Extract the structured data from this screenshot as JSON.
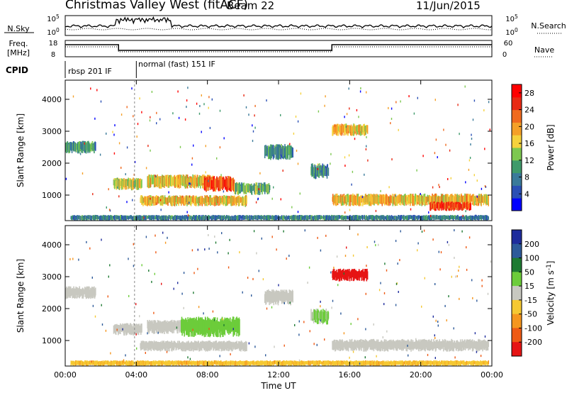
{
  "header": {
    "title": "Christmas Valley West (fitACF)",
    "beam": "Beam 22",
    "date": "11/Jun/2015"
  },
  "time_axis": {
    "label": "Time UT",
    "ticks": [
      "00:00",
      "04:00",
      "08:00",
      "12:00",
      "16:00",
      "20:00",
      "00:00"
    ]
  },
  "noise_panel": {
    "left_label": "N.Sky",
    "left_ticks": [
      "10^5",
      "10^0"
    ],
    "right_label": "N.Search",
    "right_ticks": [
      "10^5",
      "10^0"
    ]
  },
  "freq_panel": {
    "left_label_1": "Freq.",
    "left_label_2": "[MHz]",
    "left_ticks": [
      "18",
      "8"
    ],
    "right_label": "Nave",
    "right_ticks": [
      "60",
      "0"
    ]
  },
  "cpid_panel": {
    "label": "CPID",
    "segments": [
      "rbsp 201 IF",
      "normal (fast) 151 IF"
    ]
  },
  "colors": {
    "power": [
      "#0000ff",
      "#2a4fb5",
      "#3a7a9a",
      "#3f9a6a",
      "#7dc850",
      "#f5d23c",
      "#f5a028",
      "#f06a1e",
      "#e82a14",
      "#ff0000"
    ],
    "velocity": [
      "#1e2c9c",
      "#2d5a9a",
      "#1e7a32",
      "#6ccc3a",
      "#c8c8c0",
      "#f5c832",
      "#f5961e",
      "#ee5a14",
      "#e61414"
    ]
  },
  "chart_data": [
    {
      "type": "heatmap",
      "name": "power",
      "xlabel": "Time UT",
      "ylabel": "Slant Range [km]",
      "xlim": [
        0,
        24
      ],
      "ylim": [
        200,
        4600
      ],
      "yticks": [
        1000,
        2000,
        3000,
        4000
      ],
      "colorbar": {
        "label": "Power [dB]",
        "ticks": [
          4,
          8,
          12,
          16,
          20,
          24,
          28
        ],
        "range": [
          0,
          30
        ]
      },
      "regions": [
        {
          "t0": 0.0,
          "t1": 1.7,
          "r0": 2300,
          "r1": 2700,
          "value": 10
        },
        {
          "t0": 2.7,
          "t1": 4.3,
          "r0": 1150,
          "r1": 1550,
          "value": 16
        },
        {
          "t0": 4.2,
          "t1": 10.2,
          "r0": 650,
          "r1": 1000,
          "value": 18
        },
        {
          "t0": 4.6,
          "t1": 8.3,
          "r0": 1200,
          "r1": 1650,
          "value": 17
        },
        {
          "t0": 7.8,
          "t1": 9.5,
          "r0": 1100,
          "r1": 1600,
          "value": 24
        },
        {
          "t0": 9.5,
          "t1": 11.5,
          "r0": 1000,
          "r1": 1400,
          "value": 12
        },
        {
          "t0": 15.0,
          "t1": 17.0,
          "r0": 2850,
          "r1": 3250,
          "value": 18
        },
        {
          "t0": 15.0,
          "t1": 23.8,
          "r0": 650,
          "r1": 1050,
          "value": 18
        },
        {
          "t0": 20.5,
          "t1": 22.8,
          "r0": 500,
          "r1": 800,
          "value": 24
        },
        {
          "t0": 11.2,
          "t1": 12.8,
          "r0": 2100,
          "r1": 2600,
          "value": 9
        },
        {
          "t0": 13.8,
          "t1": 14.8,
          "r0": 1500,
          "r1": 2000,
          "value": 10
        },
        {
          "t0": 0.3,
          "t1": 23.8,
          "r0": 200,
          "r1": 380,
          "value": 8
        }
      ]
    },
    {
      "type": "heatmap",
      "name": "velocity",
      "xlabel": "Time UT",
      "ylabel": "Slant Range [km]",
      "xlim": [
        0,
        24
      ],
      "ylim": [
        200,
        4600
      ],
      "yticks": [
        1000,
        2000,
        3000,
        4000
      ],
      "colorbar": {
        "label": "Velocity [m s^-1]",
        "ticks": [
          200,
          100,
          50,
          15,
          -15,
          -50,
          -100,
          -200
        ],
        "range": [
          -250,
          250
        ]
      },
      "regions": [
        {
          "t0": 0.0,
          "t1": 1.7,
          "r0": 2300,
          "r1": 2700,
          "value": 0
        },
        {
          "t0": 2.7,
          "t1": 4.3,
          "r0": 1150,
          "r1": 1550,
          "value": 0
        },
        {
          "t0": 4.2,
          "t1": 10.2,
          "r0": 650,
          "r1": 1000,
          "value": 0
        },
        {
          "t0": 4.6,
          "t1": 8.3,
          "r0": 1200,
          "r1": 1650,
          "value": 0
        },
        {
          "t0": 6.5,
          "t1": 9.8,
          "r0": 1100,
          "r1": 1750,
          "value": 35
        },
        {
          "t0": 15.0,
          "t1": 17.0,
          "r0": 2850,
          "r1": 3250,
          "value": -230
        },
        {
          "t0": 15.0,
          "t1": 23.8,
          "r0": 650,
          "r1": 1050,
          "value": 0
        },
        {
          "t0": 11.2,
          "t1": 12.8,
          "r0": 2100,
          "r1": 2600,
          "value": 0
        },
        {
          "t0": 13.8,
          "t1": 14.8,
          "r0": 1500,
          "r1": 2000,
          "value": 20
        },
        {
          "t0": 0.3,
          "t1": 23.8,
          "r0": 200,
          "r1": 380,
          "value": -40
        }
      ]
    }
  ]
}
